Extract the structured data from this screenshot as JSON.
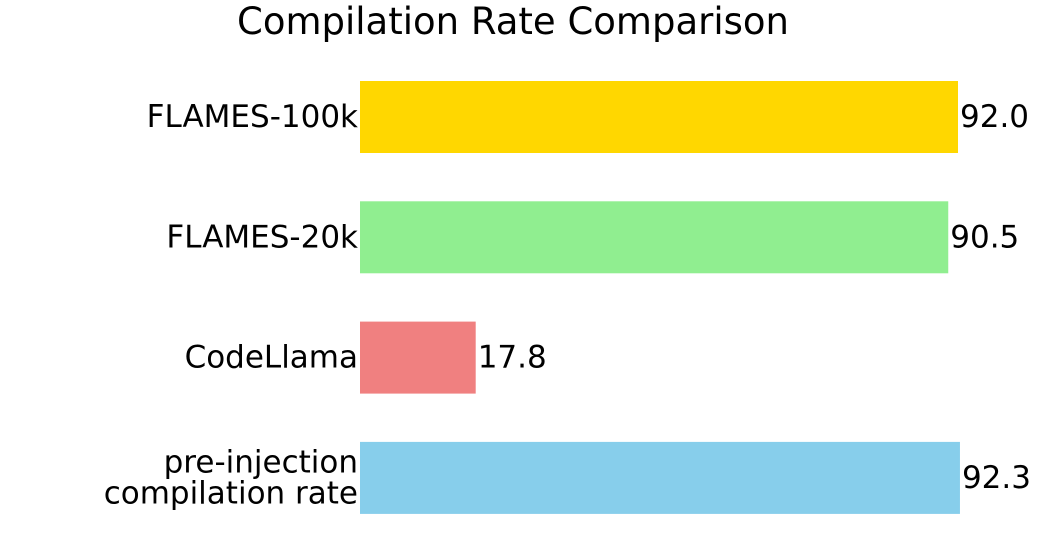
{
  "chart_data": {
    "type": "bar",
    "orientation": "horizontal",
    "title": "Compilation Rate Comparison",
    "xlabel": "",
    "ylabel": "",
    "xlim": [
      0,
      100
    ],
    "grid": false,
    "axes_visible": false,
    "value_label_decimals": 1,
    "categories": [
      [
        "FLAMES-100k"
      ],
      [
        "FLAMES-20k"
      ],
      [
        "CodeLlama"
      ],
      [
        "pre-injection",
        "compilation rate"
      ]
    ],
    "values": [
      92.0,
      90.5,
      17.8,
      92.3
    ],
    "colors": [
      "#FFD700",
      "#90EE90",
      "#F08080",
      "#87CEEB"
    ]
  }
}
